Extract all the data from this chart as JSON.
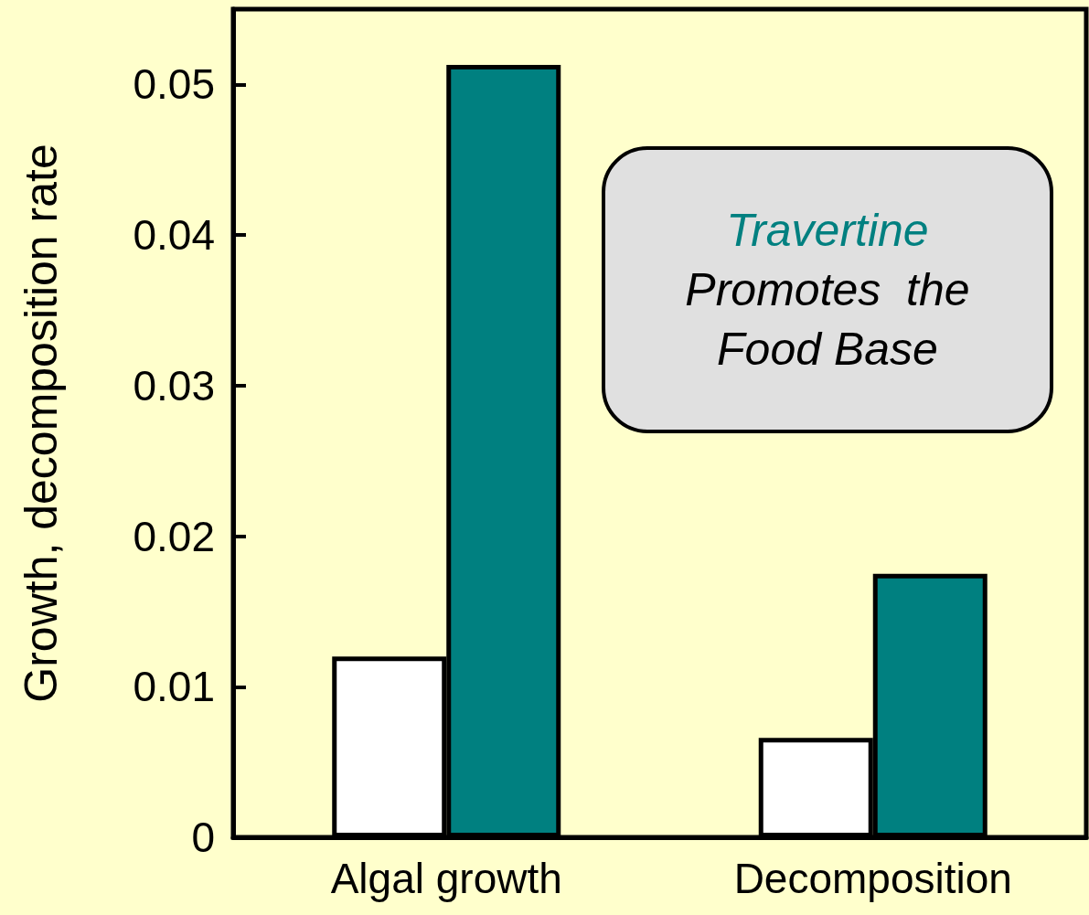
{
  "chart_data": {
    "type": "bar",
    "ylabel": "Growth, decomposition rate",
    "categories": [
      "Algal growth",
      "Decomposition"
    ],
    "series": [
      {
        "color": "#ffffff",
        "values": [
          0.012,
          0.0066
        ]
      },
      {
        "color": "#008080",
        "values": [
          0.0513,
          0.0175
        ]
      }
    ],
    "ylim": [
      0,
      0.055
    ],
    "yticks": [
      0,
      0.01,
      0.02,
      0.03,
      0.04,
      0.05
    ],
    "grid": false,
    "annotations": [
      "Travertine",
      "Promotes  the Food Base"
    ]
  }
}
